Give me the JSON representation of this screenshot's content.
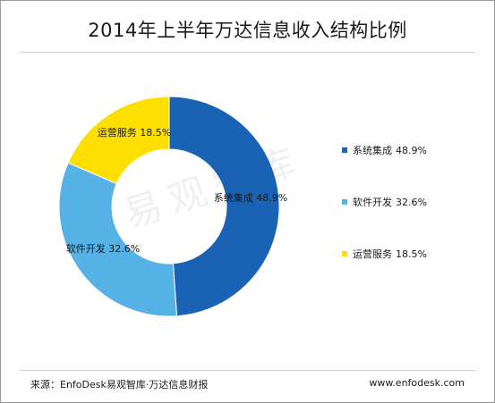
{
  "header": {
    "title": "2014年上半年万达信息收入结构比例"
  },
  "chart_data": {
    "type": "pie",
    "categories": [
      "系统集成",
      "软件开发",
      "运营服务"
    ],
    "values": [
      48.9,
      32.6,
      18.5
    ],
    "value_labels": [
      "48.9%",
      "32.6%",
      "18.5%"
    ],
    "colors": [
      "#1a63b4",
      "#56b2e6",
      "#fde000"
    ],
    "donut": true,
    "legend_position": "right"
  },
  "watermark": {
    "text": "易观智库"
  },
  "footer": {
    "source": "来源：EnfoDesk易观智库·万达信息财报",
    "site": "www.enfodesk.com"
  }
}
